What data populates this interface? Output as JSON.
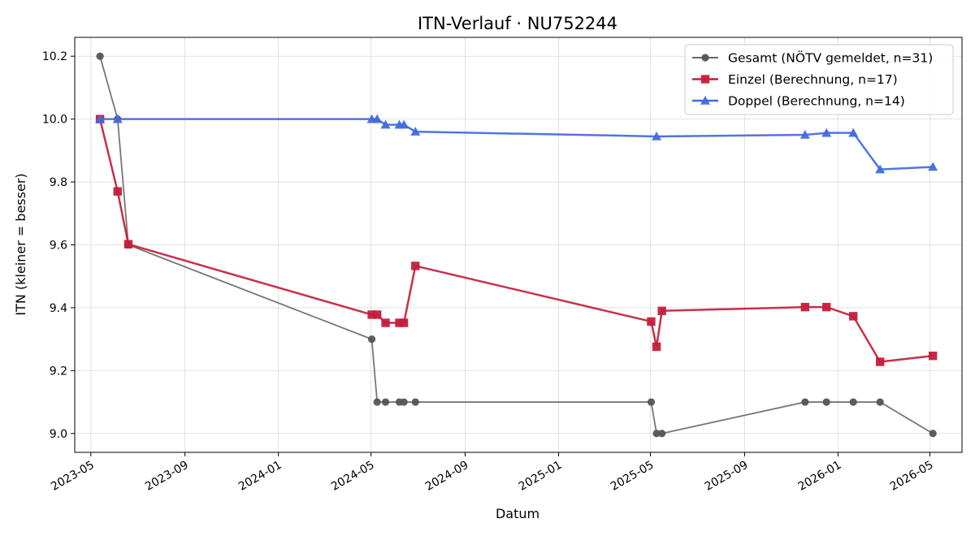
{
  "chart_data": {
    "type": "line",
    "title": "ITN-Verlauf · NU752244",
    "xlabel": "Datum",
    "ylabel": "ITN  (kleiner = besser)",
    "x_axis": "date",
    "xlim": [
      "2023-04-10",
      "2026-06-12"
    ],
    "ylim": [
      8.94,
      10.26
    ],
    "x_ticks": [
      "2023-05-01",
      "2023-09-01",
      "2024-01-01",
      "2024-05-01",
      "2024-09-01",
      "2025-01-01",
      "2025-05-01",
      "2025-09-01",
      "2026-01-01",
      "2026-05-01"
    ],
    "x_tick_labels": [
      "2023-05",
      "2023-09",
      "2024-01",
      "2024-05",
      "2024-09",
      "2025-01",
      "2025-05",
      "2025-09",
      "2026-01",
      "2026-05"
    ],
    "y_ticks": [
      9.0,
      9.2,
      9.4,
      9.6,
      9.8,
      10.0,
      10.2
    ],
    "y_tick_labels": [
      "9.0",
      "9.2",
      "9.4",
      "9.6",
      "9.8",
      "10.0",
      "10.2"
    ],
    "grid": true,
    "legend_position": "top-right",
    "series": [
      {
        "name": "Gesamt (NÖTV gemeldet, n=31)",
        "color": "#555555",
        "marker": "circle",
        "points": [
          [
            "2023-05-13",
            10.2
          ],
          [
            "2023-06-05",
            10.0
          ],
          [
            "2023-06-19",
            9.6
          ],
          [
            "2024-05-02",
            9.3
          ],
          [
            "2024-05-09",
            9.1
          ],
          [
            "2024-05-20",
            9.1
          ],
          [
            "2024-06-07",
            9.1
          ],
          [
            "2024-06-13",
            9.1
          ],
          [
            "2024-06-28",
            9.1
          ],
          [
            "2025-05-02",
            9.1
          ],
          [
            "2025-05-09",
            9.0
          ],
          [
            "2025-05-16",
            9.0
          ],
          [
            "2025-11-19",
            9.1
          ],
          [
            "2025-12-17",
            9.1
          ],
          [
            "2026-01-21",
            9.1
          ],
          [
            "2026-02-25",
            9.1
          ],
          [
            "2026-05-05",
            9.0
          ]
        ]
      },
      {
        "name": "Einzel (Berechnung, n=17)",
        "color": "#c41e3a",
        "marker": "square",
        "points": [
          [
            "2023-05-13",
            10.0
          ],
          [
            "2023-06-05",
            9.77
          ],
          [
            "2023-06-19",
            9.602
          ],
          [
            "2024-05-02",
            9.378
          ],
          [
            "2024-05-09",
            9.378
          ],
          [
            "2024-05-20",
            9.352
          ],
          [
            "2024-06-07",
            9.352
          ],
          [
            "2024-06-13",
            9.352
          ],
          [
            "2024-06-28",
            9.533
          ],
          [
            "2025-05-02",
            9.356
          ],
          [
            "2025-05-09",
            9.276
          ],
          [
            "2025-05-16",
            9.39
          ],
          [
            "2025-11-19",
            9.402
          ],
          [
            "2025-12-17",
            9.402
          ],
          [
            "2026-01-21",
            9.373
          ],
          [
            "2026-02-25",
            9.228
          ],
          [
            "2026-05-05",
            9.247
          ]
        ]
      },
      {
        "name": "Doppel (Berechnung, n=14)",
        "color": "#4169e1",
        "marker": "triangle",
        "points": [
          [
            "2023-05-13",
            10.0
          ],
          [
            "2023-06-05",
            10.0
          ],
          [
            "2024-05-02",
            10.0
          ],
          [
            "2024-05-09",
            10.0
          ],
          [
            "2024-05-20",
            9.982
          ],
          [
            "2024-06-07",
            9.982
          ],
          [
            "2024-06-13",
            9.982
          ],
          [
            "2024-06-28",
            9.96
          ],
          [
            "2025-05-09",
            9.945
          ],
          [
            "2025-11-19",
            9.95
          ],
          [
            "2025-12-17",
            9.956
          ],
          [
            "2026-01-21",
            9.956
          ],
          [
            "2026-02-25",
            9.84
          ],
          [
            "2026-05-05",
            9.848
          ]
        ]
      }
    ]
  }
}
